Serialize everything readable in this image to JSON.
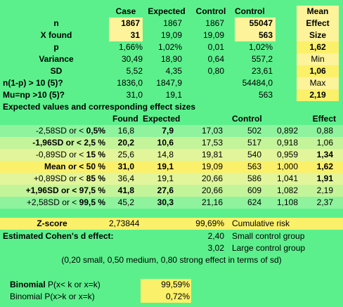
{
  "header": {
    "case": "Case",
    "expected": "Expected",
    "control": "Control",
    "control2": "Control",
    "mean_effect_size": [
      "Mean",
      "Effect",
      "Size"
    ]
  },
  "stats": {
    "n": {
      "label": "n",
      "case": "1867",
      "expected": "1867",
      "control": "1867",
      "control2": "55047"
    },
    "x_found": {
      "label": "X found",
      "case": "31",
      "expected": "19,09",
      "control": "19,09",
      "control2": "563"
    },
    "p": {
      "label": "p",
      "case": "1,66%",
      "expected": "1,02%",
      "control": "0,01",
      "control2": "1,02%",
      "side": "1,62"
    },
    "variance": {
      "label": "Variance",
      "case": "30,49",
      "expected": "18,90",
      "control": "0,64",
      "control2": "557,2",
      "side": "Min"
    },
    "sd": {
      "label": "SD",
      "case": "5,52",
      "expected": "4,35",
      "control": "0,80",
      "control2": "23,61",
      "side": "1,06"
    },
    "n1p": {
      "label": "n(1-p) > 10 (5)?",
      "case": "1836,0",
      "expected": "1847,9",
      "control2": "54484,0",
      "side": "Max"
    },
    "munp": {
      "label": "Mu=np >10 (5)?",
      "case": "31,0",
      "expected": "19,1",
      "control2": "563",
      "side": "2,19"
    }
  },
  "expected_section": {
    "title": "Expected values and corresponding effect sizes",
    "headers": {
      "found": "Found",
      "expected": "Expected",
      "control": "Control",
      "effect": "Effect"
    },
    "rows": [
      {
        "pre": "-2,58SD or < ",
        "pct": "0,5%",
        "found": "16,8",
        "expected": "7,9",
        "c1": "17,03",
        "c2": "502",
        "c3": "0,892",
        "effect": "0,88"
      },
      {
        "pre": "-1,96SD or < ",
        "pct": "2,5 %",
        "found": "20,2",
        "expected": "10,6",
        "c1": "17,53",
        "c2": "517",
        "c3": "0,918",
        "effect": "1,06"
      },
      {
        "pre": "-0,89SD or < ",
        "pct": "15 %",
        "found": "25,6",
        "expected": "14,8",
        "c1": "19,81",
        "c2": "540",
        "c3": "0,959",
        "effect": "1,34"
      },
      {
        "pre": "Mean  or < ",
        "pct": "50 %",
        "found": "31,0",
        "expected": "19,1",
        "c1": "19,09",
        "c2": "563",
        "c3": "1,000",
        "effect": "1,62"
      },
      {
        "pre": "+0,89SD or < ",
        "pct": "85 %",
        "found": "36,4",
        "expected": "19,1",
        "c1": "20,66",
        "c2": "586",
        "c3": "1,041",
        "effect": "1,91"
      },
      {
        "pre": "+1,96SD or < ",
        "pct": "97,5 %",
        "found": "41,8",
        "expected": "27,6",
        "c1": "20,66",
        "c2": "609",
        "c3": "1,082",
        "effect": "2,19"
      },
      {
        "pre": "+2,58SD or < ",
        "pct": "99,5 %",
        "found": "45,2",
        "expected": "30,3",
        "c1": "21,16",
        "c2": "624",
        "c3": "1,108",
        "effect": "2,37"
      }
    ]
  },
  "zscore": {
    "label": "Z-score",
    "value": "2,73844",
    "risk": "99,69%",
    "risk_label": "Cumulative risk"
  },
  "cohen": {
    "label": "Estimated Cohen's d effect:",
    "small_value": "2,40",
    "small_label": "Small control group",
    "large_value": "3,02",
    "large_label": "Large control group",
    "note": "(0,20 small, 0,50 medium, 0,80 strong effect in terms of sd)"
  },
  "binomial": {
    "label1_bold": "Binomial",
    "label1_rest": " P(x< k or x=k)",
    "value1": "99,59%",
    "label2": "Binomial P(x>k or x=k)",
    "value2": "0,72%"
  }
}
